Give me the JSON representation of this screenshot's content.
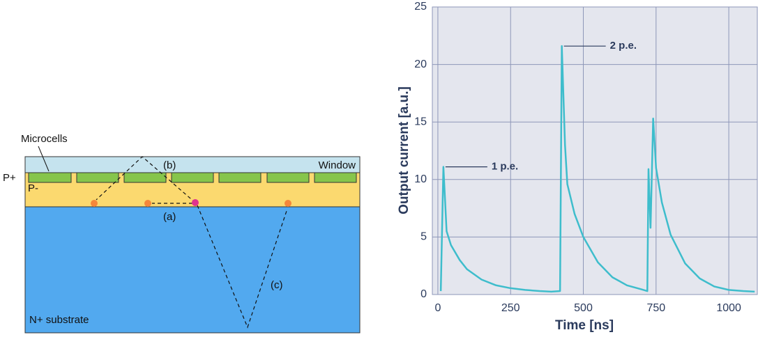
{
  "diagram": {
    "labels": {
      "microcells": "Microcells",
      "p_plus": "P+",
      "p_minus": "P-",
      "window": "Window",
      "a": "(a)",
      "b": "(b)",
      "c": "(c)",
      "substrate": "N+ substrate"
    }
  },
  "chart_data": {
    "type": "line",
    "x_label": "Time [ns]",
    "y_label": "Output current [a.u.]",
    "xlim": [
      -19,
      1098
    ],
    "ylim": [
      0,
      25
    ],
    "xticks": [
      0,
      250,
      500,
      750,
      1000
    ],
    "yticks": [
      0,
      5,
      10,
      15,
      20,
      25
    ],
    "grid": true,
    "series": [
      {
        "color": "#3ebdcc",
        "x": [
          10,
          19,
          30,
          45,
          75,
          100,
          150,
          200,
          250,
          300,
          350,
          390,
          420,
          426,
          437,
          445,
          470,
          500,
          550,
          600,
          650,
          700,
          720,
          724,
          731,
          737,
          740,
          750,
          770,
          800,
          850,
          900,
          950,
          1000,
          1050,
          1089
        ],
        "values": [
          0.3,
          11.1,
          5.5,
          4.3,
          3,
          2.2,
          1.3,
          0.8,
          0.55,
          0.4,
          0.3,
          0.25,
          0.3,
          21.6,
          13,
          9.6,
          7,
          5,
          2.8,
          1.5,
          0.8,
          0.45,
          0.3,
          10.9,
          5.8,
          12,
          15.3,
          11,
          8,
          5.2,
          2.7,
          1.4,
          0.7,
          0.4,
          0.3,
          0.25
        ]
      }
    ],
    "annotations": [
      {
        "text": "1 p.e.",
        "x": 19,
        "y": 11.1
      },
      {
        "text": "2 p.e.",
        "x": 426,
        "y": 21.6
      }
    ]
  }
}
